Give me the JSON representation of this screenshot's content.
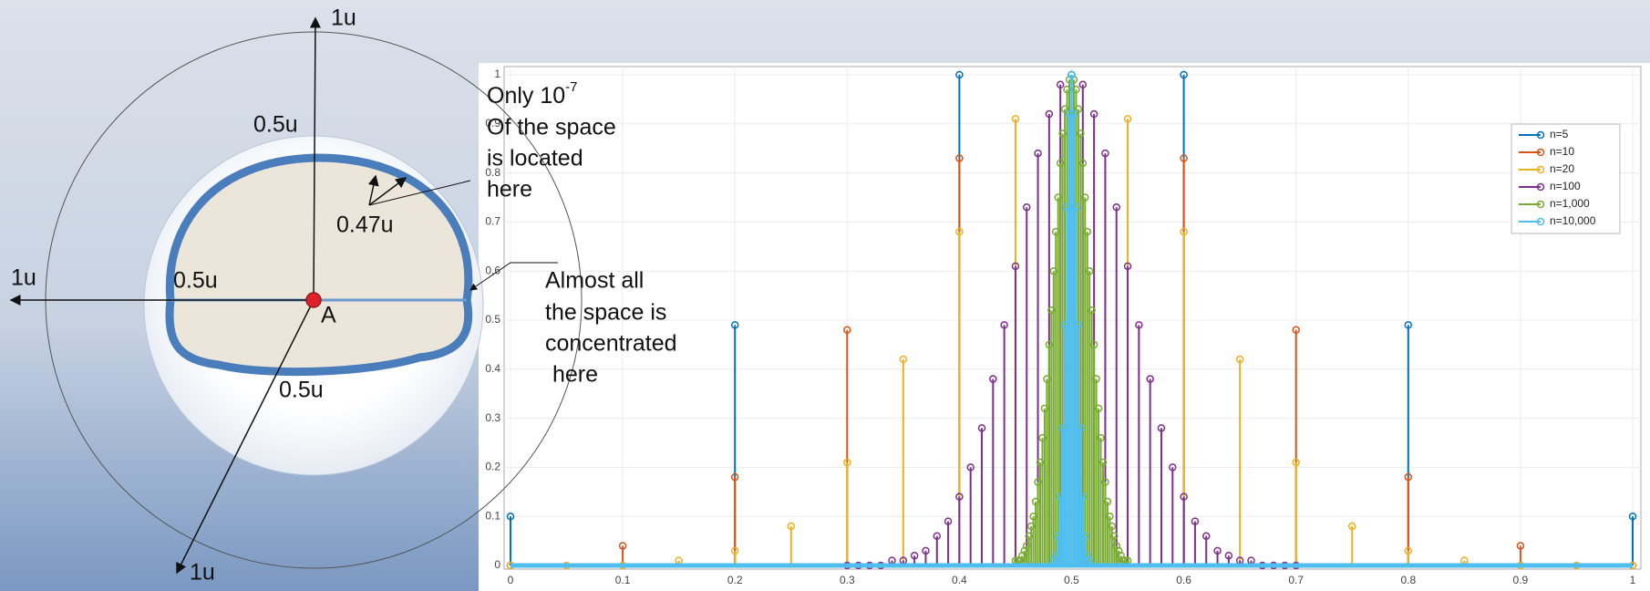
{
  "diagram": {
    "labels": [
      "1u",
      "0.5u",
      "0.47u",
      "1u",
      "0.5u",
      "A",
      "0.5u",
      "1u"
    ],
    "top_note": {
      "first_line": "Only 10",
      "exponent": "-7",
      "lines": [
        "Of the space",
        "is located",
        "here"
      ]
    },
    "side_note": {
      "lines": [
        "Almost all",
        "the space is",
        "concentrated",
        "here"
      ]
    }
  },
  "chart_data": {
    "type": "stem",
    "xlim": [
      0,
      1
    ],
    "ylim": [
      0,
      1
    ],
    "xticks": [
      0,
      0.1,
      0.2,
      0.3,
      0.4,
      0.5,
      0.6,
      0.7,
      0.8,
      0.9,
      1
    ],
    "yticks": [
      0,
      0.1,
      0.2,
      0.3,
      0.4,
      0.5,
      0.6,
      0.7,
      0.8,
      0.9,
      1
    ],
    "grid": true,
    "legend": "top-right",
    "series": [
      {
        "name": "n=5",
        "color": "#0072bd",
        "x": [
          0,
          0.2,
          0.4,
          0.6,
          0.8,
          1
        ],
        "values": [
          0.1,
          0.49,
          1,
          1,
          0.49,
          0.1
        ]
      },
      {
        "name": "n=10",
        "color": "#d95319",
        "x": [
          0,
          0.1,
          0.2,
          0.3,
          0.4,
          0.5,
          0.6,
          0.7,
          0.8,
          0.9,
          1
        ],
        "values": [
          0,
          0.04,
          0.18,
          0.48,
          0.83,
          1,
          0.83,
          0.48,
          0.18,
          0.04,
          0
        ]
      },
      {
        "name": "n=20",
        "color": "#edb120",
        "x": [
          0,
          0.05,
          0.1,
          0.15,
          0.2,
          0.25,
          0.3,
          0.35,
          0.4,
          0.45,
          0.5,
          0.55,
          0.6,
          0.65,
          0.7,
          0.75,
          0.8,
          0.85,
          0.9,
          0.95,
          1
        ],
        "values": [
          0,
          0,
          0,
          0.01,
          0.03,
          0.08,
          0.21,
          0.42,
          0.68,
          0.91,
          1,
          0.91,
          0.68,
          0.42,
          0.21,
          0.08,
          0.03,
          0.01,
          0,
          0,
          0
        ]
      },
      {
        "name": "n=100",
        "color": "#7e2f8e",
        "x": [
          0.3,
          0.31,
          0.32,
          0.33,
          0.34,
          0.35,
          0.36,
          0.37,
          0.38,
          0.39,
          0.4,
          0.41,
          0.42,
          0.43,
          0.44,
          0.45,
          0.46,
          0.47,
          0.48,
          0.49,
          0.5,
          0.51,
          0.52,
          0.53,
          0.54,
          0.55,
          0.56,
          0.57,
          0.58,
          0.59,
          0.6,
          0.61,
          0.62,
          0.63,
          0.64,
          0.65,
          0.66,
          0.67,
          0.68,
          0.69,
          0.7
        ],
        "values": [
          0,
          0,
          0,
          0,
          0.01,
          0.01,
          0.02,
          0.03,
          0.06,
          0.09,
          0.14,
          0.2,
          0.28,
          0.38,
          0.49,
          0.61,
          0.73,
          0.84,
          0.92,
          0.98,
          1,
          0.98,
          0.92,
          0.84,
          0.73,
          0.61,
          0.49,
          0.38,
          0.28,
          0.2,
          0.14,
          0.09,
          0.06,
          0.03,
          0.02,
          0.01,
          0.01,
          0,
          0,
          0,
          0
        ]
      },
      {
        "name": "n=1,000",
        "color": "#77ac30",
        "x": [
          0.45,
          0.452,
          0.454,
          0.456,
          0.458,
          0.46,
          0.462,
          0.464,
          0.466,
          0.468,
          0.47,
          0.472,
          0.474,
          0.476,
          0.478,
          0.48,
          0.482,
          0.484,
          0.486,
          0.488,
          0.49,
          0.492,
          0.494,
          0.496,
          0.498,
          0.5,
          0.502,
          0.504,
          0.506,
          0.508,
          0.51,
          0.512,
          0.514,
          0.516,
          0.518,
          0.52,
          0.522,
          0.524,
          0.526,
          0.528,
          0.53,
          0.532,
          0.534,
          0.536,
          0.538,
          0.54,
          0.542,
          0.544,
          0.546,
          0.548,
          0.55
        ],
        "values": [
          0.01,
          0.01,
          0.01,
          0.02,
          0.03,
          0.04,
          0.06,
          0.08,
          0.1,
          0.13,
          0.17,
          0.21,
          0.26,
          0.32,
          0.38,
          0.45,
          0.52,
          0.6,
          0.68,
          0.75,
          0.82,
          0.88,
          0.93,
          0.97,
          0.99,
          1,
          0.99,
          0.97,
          0.93,
          0.88,
          0.82,
          0.75,
          0.68,
          0.6,
          0.52,
          0.45,
          0.38,
          0.32,
          0.26,
          0.21,
          0.17,
          0.13,
          0.1,
          0.08,
          0.06,
          0.04,
          0.03,
          0.02,
          0.01,
          0.01,
          0.01
        ]
      },
      {
        "name": "n=10,000",
        "color": "#4dbeee",
        "x": [
          0.484,
          0.486,
          0.488,
          0.49,
          0.492,
          0.494,
          0.496,
          0.498,
          0.5,
          0.502,
          0.504,
          0.506,
          0.508,
          0.51,
          0.512,
          0.514,
          0.516
        ],
        "values": [
          0.01,
          0.02,
          0.06,
          0.14,
          0.28,
          0.49,
          0.73,
          0.92,
          1,
          0.92,
          0.73,
          0.49,
          0.28,
          0.14,
          0.06,
          0.02,
          0.01
        ]
      }
    ]
  }
}
